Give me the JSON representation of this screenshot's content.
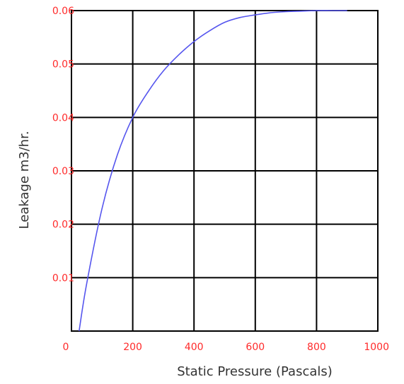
{
  "chart_data": {
    "type": "line",
    "title": "",
    "xlabel": "Static Pressure (Pascals)",
    "ylabel": "Leakage m3/hr.",
    "xlim": [
      0,
      1000
    ],
    "ylim": [
      0,
      0.06
    ],
    "x_ticks": [
      "0",
      "200",
      "400",
      "600",
      "800",
      "1000"
    ],
    "y_ticks": [
      "0.01",
      "0.02",
      "0.03",
      "0.04",
      "0.05",
      "0.06"
    ],
    "grid": true,
    "legend": "none",
    "series": [
      {
        "color": "#5555ee",
        "x": [
          25,
          50,
          100,
          150,
          200,
          250,
          300,
          350,
          400,
          450,
          500,
          550,
          600,
          650,
          700,
          750,
          800,
          850,
          900
        ],
        "y": [
          0,
          0.009,
          0.023,
          0.033,
          0.04,
          0.0448,
          0.0487,
          0.0517,
          0.0542,
          0.0562,
          0.0578,
          0.0587,
          0.0592,
          0.0596,
          0.0598,
          0.0599,
          0.06,
          0.06,
          0.06
        ]
      }
    ],
    "colors": {
      "tick_label": "#ff2a2a",
      "grid": "#000000",
      "axis_title": "#333333"
    }
  }
}
